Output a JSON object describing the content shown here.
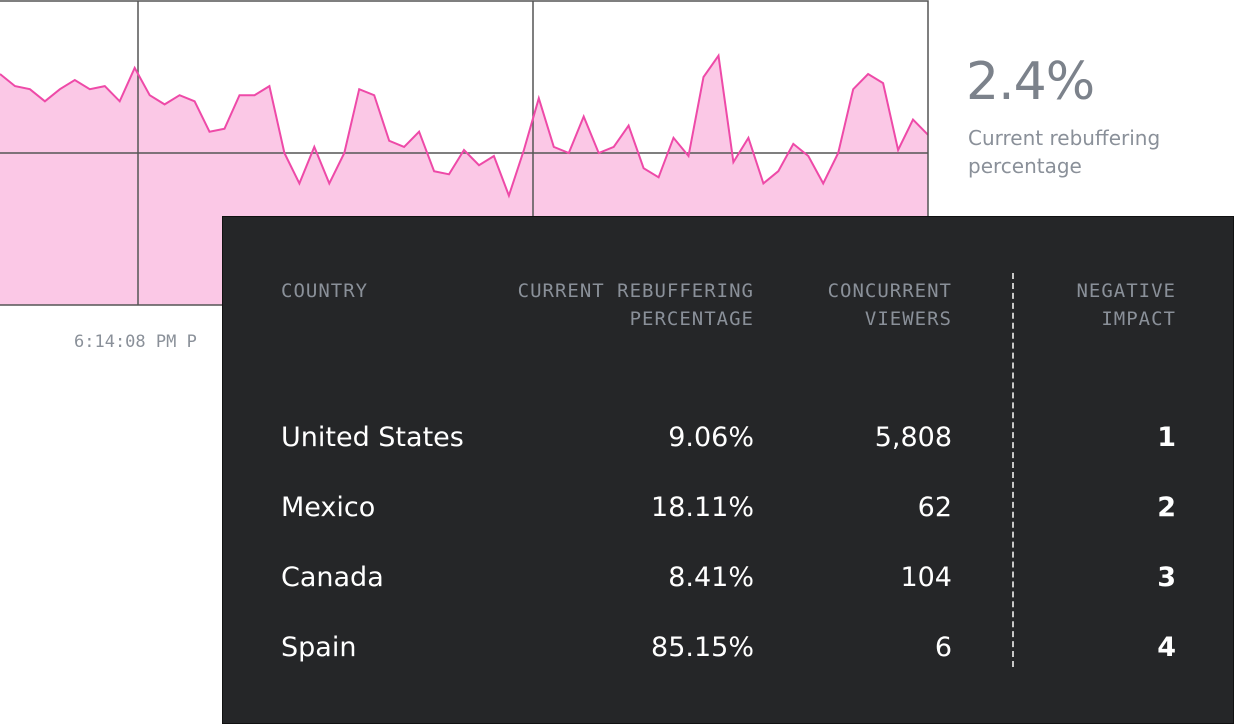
{
  "chart_data": {
    "type": "area",
    "values": [
      76,
      72,
      71,
      67,
      71,
      74,
      71,
      72,
      67,
      78,
      69,
      66,
      69,
      67,
      57,
      58,
      69,
      69,
      72,
      50,
      40,
      52,
      40,
      50,
      71,
      69,
      54,
      52,
      57,
      44,
      43,
      51,
      46,
      49,
      36,
      51,
      68,
      52,
      50,
      62,
      50,
      52,
      59,
      45,
      42,
      55,
      49,
      75,
      82,
      47,
      55,
      40,
      44,
      53,
      49,
      40,
      50,
      71,
      76,
      73,
      51,
      61,
      56
    ],
    "color": "#ee4aa8",
    "fill": "#fbc8e6",
    "ylim": [
      0,
      100
    ],
    "yticks": [
      50
    ],
    "grid": true,
    "x_label": "6:14:08 PM P"
  },
  "stat": {
    "value": "2.4%",
    "label": "Current rebuffering percentage"
  },
  "table": {
    "headers": [
      "COUNTRY",
      "CURRENT REBUFFERING PERCENTAGE",
      "CONCURRENT VIEWERS",
      "NEGATIVE IMPACT"
    ],
    "rows": [
      [
        "United States",
        "9.06%",
        "5,808",
        "1"
      ],
      [
        "Mexico",
        "18.11%",
        "62",
        "2"
      ],
      [
        "Canada",
        "8.41%",
        "104",
        "3"
      ],
      [
        "Spain",
        "85.15%",
        "6",
        "4"
      ]
    ]
  }
}
